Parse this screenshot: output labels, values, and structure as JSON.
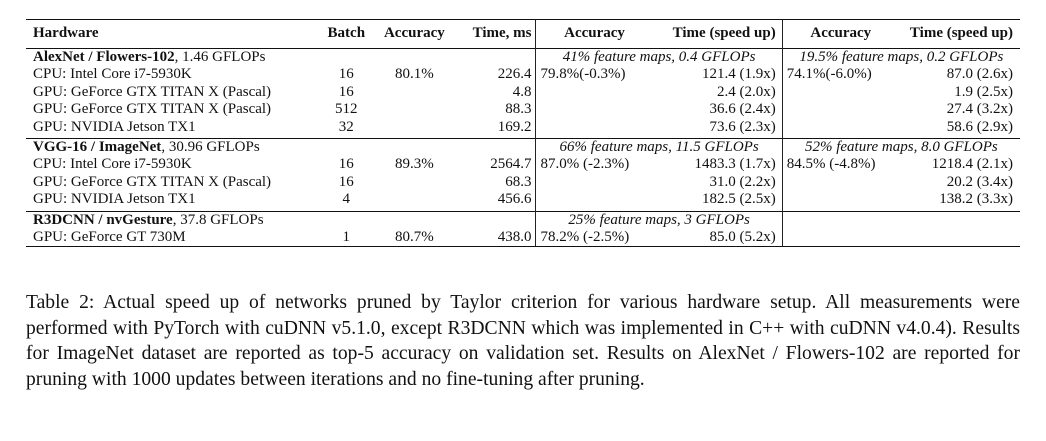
{
  "table": {
    "headers": {
      "hardware": "Hardware",
      "batch": "Batch",
      "accuracy": "Accuracy",
      "time": "Time, ms",
      "accuracy_2": "Accuracy",
      "time_speedup_2": "Time (speed up)",
      "accuracy_3": "Accuracy",
      "time_speedup_3": "Time (speed up)"
    },
    "groups": [
      {
        "network": "AlexNet / Flowers-102",
        "flops": ", 1.46 GFLOPs",
        "setting_2": "41% feature maps, 0.4 GFLOPs",
        "setting_3": "19.5% feature maps, 0.2 GFLOPs",
        "rows": [
          {
            "hw": "CPU: Intel Core i7-5930K",
            "batch": "16",
            "acc": "80.1%",
            "time": "226.4",
            "acc2": "79.8%(-0.3%)",
            "time2": "121.4 (1.9x)",
            "acc3": "74.1%(-6.0%)",
            "time3": "87.0 (2.6x)"
          },
          {
            "hw": "GPU: GeForce GTX TITAN X (Pascal)",
            "batch": "16",
            "acc": "",
            "time": "4.8",
            "acc2": "",
            "time2": "2.4 (2.0x)",
            "acc3": "",
            "time3": "1.9 (2.5x)"
          },
          {
            "hw": "GPU: GeForce GTX TITAN X (Pascal)",
            "batch": "512",
            "acc": "",
            "time": "88.3",
            "acc2": "",
            "time2": "36.6 (2.4x)",
            "acc3": "",
            "time3": "27.4 (3.2x)"
          },
          {
            "hw": "GPU: NVIDIA Jetson TX1",
            "batch": "32",
            "acc": "",
            "time": "169.2",
            "acc2": "",
            "time2": "73.6 (2.3x)",
            "acc3": "",
            "time3": "58.6 (2.9x)"
          }
        ]
      },
      {
        "network": "VGG-16 / ImageNet",
        "flops": ", 30.96 GFLOPs",
        "setting_2": "66% feature maps, 11.5 GFLOPs",
        "setting_3": "52% feature maps, 8.0 GFLOPs",
        "rows": [
          {
            "hw": "CPU: Intel Core i7-5930K",
            "batch": "16",
            "acc": "89.3%",
            "time": "2564.7",
            "acc2": "87.0% (-2.3%)",
            "time2": "1483.3 (1.7x)",
            "acc3": "84.5% (-4.8%)",
            "time3": "1218.4 (2.1x)"
          },
          {
            "hw": "GPU: GeForce GTX TITAN X (Pascal)",
            "batch": "16",
            "acc": "",
            "time": "68.3",
            "acc2": "",
            "time2": "31.0 (2.2x)",
            "acc3": "",
            "time3": "20.2 (3.4x)"
          },
          {
            "hw": "GPU: NVIDIA Jetson TX1",
            "batch": "4",
            "acc": "",
            "time": "456.6",
            "acc2": "",
            "time2": "182.5 (2.5x)",
            "acc3": "",
            "time3": "138.2 (3.3x)"
          }
        ]
      },
      {
        "network": "R3DCNN / nvGesture",
        "flops": ", 37.8 GFLOPs",
        "setting_2": "25% feature maps, 3 GFLOPs",
        "setting_3": "",
        "rows": [
          {
            "hw": "GPU: GeForce GT 730M",
            "batch": "1",
            "acc": "80.7%",
            "time": "438.0",
            "acc2": "78.2% (-2.5%)",
            "time2": "85.0 (5.2x)",
            "acc3": "",
            "time3": ""
          }
        ]
      }
    ]
  },
  "caption": "Table 2: Actual speed up of networks pruned by Taylor criterion for various hardware setup. All measurements were performed with PyTorch with cuDNN v5.1.0, except R3DCNN which was implemented in C++ with cuDNN v4.0.4). Results for ImageNet dataset are reported as top-5 accuracy on validation set. Results on AlexNet / Flowers-102 are reported for pruning with 1000 updates between iterations and no fine-tuning after pruning."
}
